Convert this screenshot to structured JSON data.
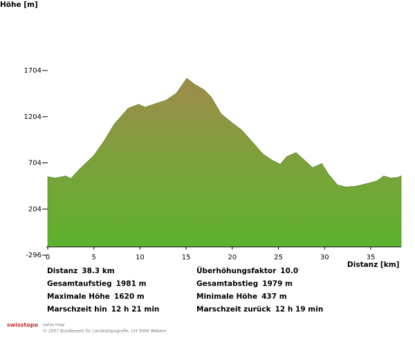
{
  "chart_data": {
    "type": "area",
    "y_label": "Höhe [m]",
    "x_label": "Distanz [km]",
    "x": [
      0,
      0.82,
      1.95,
      2.5,
      3.45,
      4.95,
      6.07,
      7.2,
      8.7,
      9.82,
      10.57,
      11.7,
      12.82,
      13.94,
      15.07,
      15.82,
      16.94,
      17.69,
      18.8,
      19.9,
      21.0,
      22.2,
      23.3,
      24.4,
      25.2,
      25.9,
      26.9,
      27.8,
      28.7,
      29.7,
      30.4,
      31.4,
      32.3,
      33.4,
      34.6,
      35.7,
      36.4,
      37.2,
      37.9,
      38.3
    ],
    "y": [
      555,
      540,
      562,
      533,
      637,
      779,
      935,
      1122,
      1294,
      1338,
      1308,
      1346,
      1383,
      1458,
      1620,
      1562,
      1495,
      1420,
      1234,
      1144,
      1062,
      928,
      801,
      727,
      689,
      771,
      816,
      734,
      652,
      697,
      585,
      466,
      443,
      451,
      480,
      510,
      562,
      540,
      547,
      562
    ],
    "xlim": [
      0,
      38.3
    ],
    "xticks": [
      0,
      5,
      10,
      15,
      20,
      25,
      30,
      35
    ],
    "ylim": [
      -296,
      1704
    ],
    "yticks": [
      -296,
      204,
      704,
      1204,
      1704
    ]
  },
  "stats": [
    {
      "label": "Distanz",
      "value": "38.3 km"
    },
    {
      "label": "Überhöhungsfaktor",
      "value": "10.0"
    },
    {
      "label": "Gesamtaufstieg",
      "value": "1981 m"
    },
    {
      "label": "Gesamtabstieg",
      "value": "1979 m"
    },
    {
      "label": "Maximale Höhe",
      "value": "1620 m"
    },
    {
      "label": "Minimale Höhe",
      "value": "437 m"
    },
    {
      "label": "Marschzeit hin",
      "value": "12 h 21 min"
    },
    {
      "label": "Marschzeit zurück",
      "value": "12 h 19 min"
    }
  ],
  "footer": {
    "logo": "swisstopo",
    "product": "swiss map",
    "copyright": "© 2007 Bundesamt für Landestopografie, CH-3084 Wabern"
  }
}
